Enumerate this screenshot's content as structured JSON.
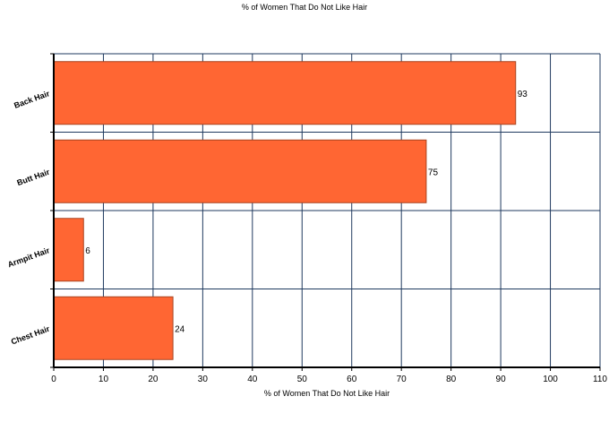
{
  "chart_data": {
    "type": "bar",
    "orientation": "horizontal",
    "title": "% of Women That Do Not Like Hair",
    "xlabel": "% of Women That Do Not Like Hair",
    "ylabel": "",
    "categories": [
      "Back Hair",
      "Butt Hair",
      "Armpit Hair",
      "Chest Hair"
    ],
    "values": [
      93,
      75,
      6,
      24
    ],
    "xlim": [
      0,
      110
    ],
    "x_ticks": [
      0,
      10,
      20,
      30,
      40,
      50,
      60,
      70,
      80,
      90,
      100,
      110
    ],
    "grid": true,
    "legend": "none",
    "colors": {
      "bar_fill": "#ff6633",
      "bar_stroke": "#a84420",
      "grid": "#1f3a5f",
      "axis": "#000000",
      "background": "#ffffff"
    }
  }
}
